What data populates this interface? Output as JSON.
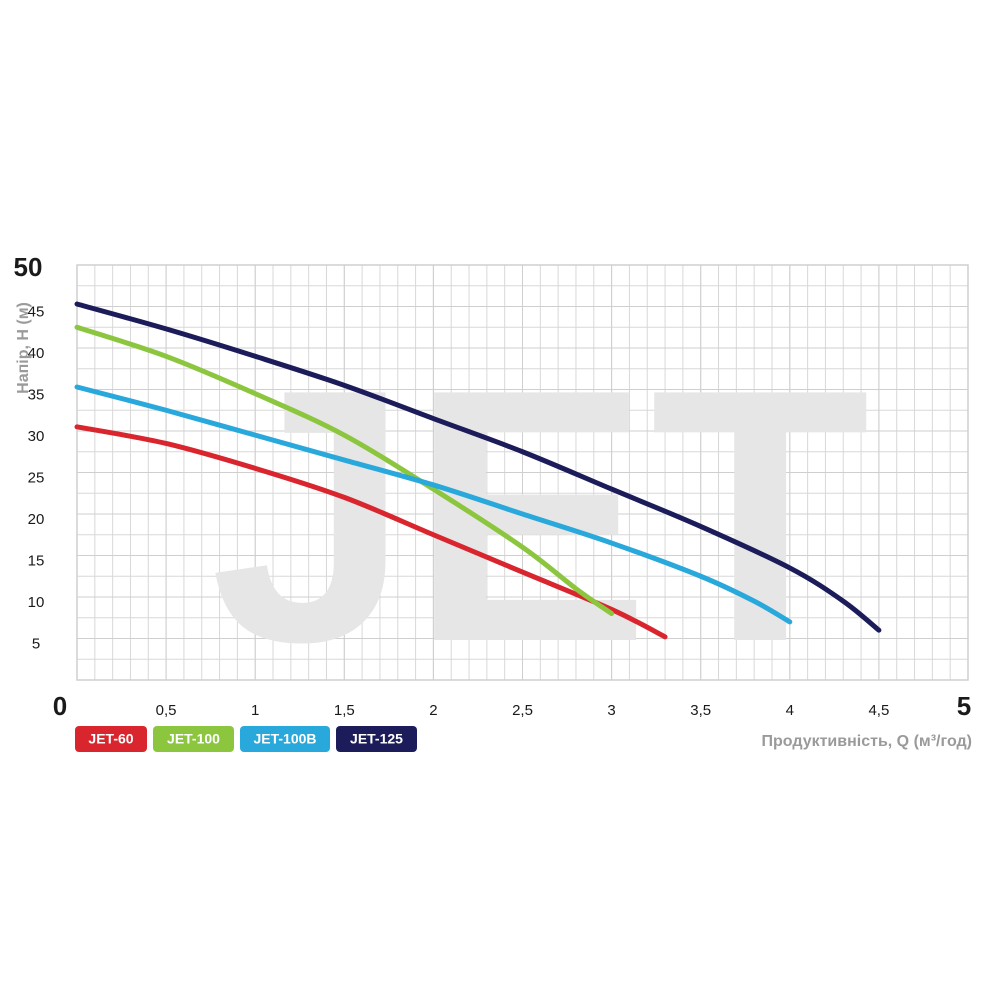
{
  "chart_data": {
    "type": "line",
    "watermark": "JET",
    "y_label": "Напір, H (м)",
    "x_label": "Продуктивність, Q (м³/год)",
    "xlim": [
      0,
      5
    ],
    "ylim": [
      0,
      50
    ],
    "xticks": [
      0,
      {
        "value": 0.5,
        "label": "0,5"
      },
      1,
      {
        "value": 1.5,
        "label": "1,5"
      },
      2,
      {
        "value": 2.5,
        "label": "2,5"
      },
      3,
      {
        "value": 3.5,
        "label": "3,5"
      },
      4,
      {
        "value": 4.5,
        "label": "4,5"
      },
      5
    ],
    "yticks": [
      5,
      10,
      15,
      20,
      25,
      30,
      35,
      40,
      45,
      50
    ],
    "grid": true,
    "series": [
      {
        "name": "JET-60",
        "color": "#d9262e",
        "x": [
          0,
          0.5,
          1,
          1.5,
          2,
          2.5,
          3,
          3.3
        ],
        "values": [
          30.5,
          28.5,
          25.5,
          22,
          17.5,
          13,
          8.5,
          5.2
        ]
      },
      {
        "name": "JET-100",
        "color": "#8cc63f",
        "x": [
          0,
          0.5,
          1,
          1.5,
          2,
          2.5,
          2.8,
          3
        ],
        "values": [
          42.5,
          39,
          34.5,
          29.5,
          23,
          16,
          11,
          8
        ]
      },
      {
        "name": "JET-100B",
        "color": "#29a8dc",
        "x": [
          0,
          0.5,
          1,
          1.5,
          2,
          2.5,
          3,
          3.5,
          3.8,
          4
        ],
        "values": [
          35.3,
          32.5,
          29.5,
          26.5,
          23.5,
          20,
          16.5,
          12.5,
          9.5,
          7
        ]
      },
      {
        "name": "JET-125",
        "color": "#1c1c5a",
        "x": [
          0,
          0.5,
          1,
          1.5,
          2,
          2.5,
          3,
          3.5,
          4,
          4.3,
          4.5
        ],
        "values": [
          45.3,
          42.3,
          39,
          35.5,
          31.5,
          27.5,
          23,
          18.5,
          13.5,
          9.5,
          6
        ]
      }
    ]
  }
}
